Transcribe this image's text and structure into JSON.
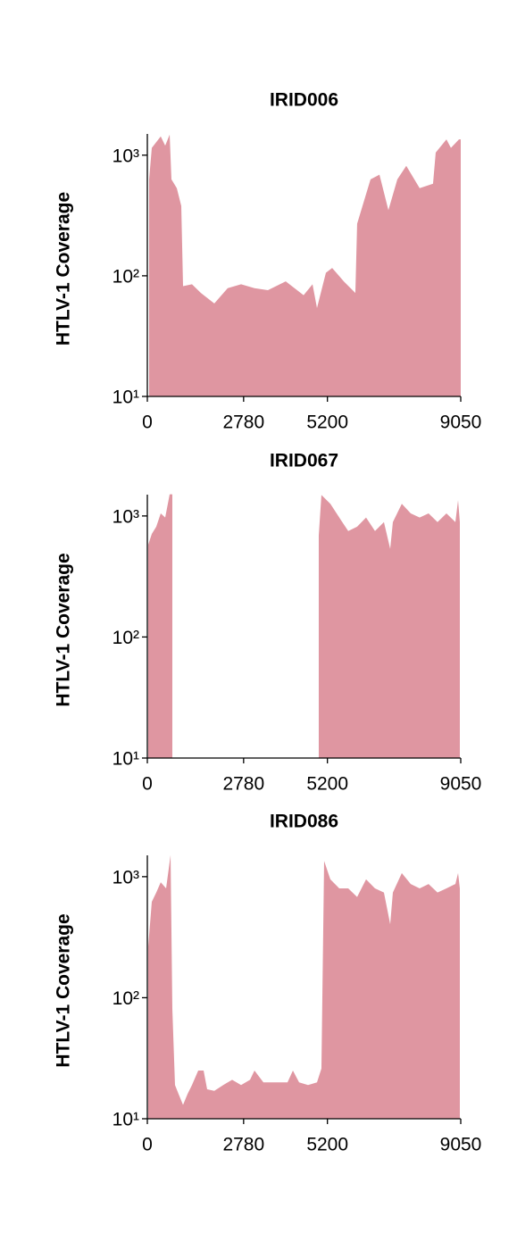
{
  "chart_data": [
    {
      "type": "area",
      "title": "IRID006",
      "ylabel": "HTLV-1 Coverage",
      "color": "#df96a1",
      "log_y": true,
      "xlim": [
        0,
        9050
      ],
      "xticks": [
        0,
        2780,
        5200,
        9050
      ],
      "ylim": [
        10,
        1500
      ],
      "yticks": [
        {
          "value": 10,
          "label": "10¹"
        },
        {
          "value": 100,
          "label": "10²"
        },
        {
          "value": 1000,
          "label": "10³"
        }
      ],
      "x": [
        52,
        129,
        387,
        516,
        645,
        696,
        851,
        980,
        1031,
        1289,
        1547,
        1934,
        2320,
        2707,
        3094,
        3481,
        3996,
        4512,
        4770,
        4899,
        5156,
        5337,
        5672,
        6007,
        6058,
        6445,
        6703,
        6961,
        7219,
        7477,
        7863,
        8250,
        8327,
        8637,
        8766,
        8998,
        9050
      ],
      "series": [
        {
          "values": [
            631,
            1150,
            1430,
            1200,
            1480,
            630,
            533,
            380,
            82,
            85,
            72,
            59,
            79,
            85,
            79,
            76,
            90,
            69,
            85,
            54,
            106,
            116,
            90,
            72,
            270,
            630,
            690,
            350,
            630,
            815,
            533,
            580,
            1050,
            1350,
            1150,
            1350,
            1350
          ]
        }
      ]
    },
    {
      "type": "area",
      "title": "IRID067",
      "ylabel": "HTLV-1 Coverage",
      "color": "#df96a1",
      "log_y": true,
      "xlim": [
        0,
        9050
      ],
      "xticks": [
        0,
        2780,
        5200,
        9050
      ],
      "ylim": [
        10,
        1500
      ],
      "yticks": [
        {
          "value": 10,
          "label": "10¹"
        },
        {
          "value": 100,
          "label": "10²"
        },
        {
          "value": 1000,
          "label": "10³"
        }
      ],
      "x": [
        26,
        129,
        258,
        387,
        516,
        645,
        722,
        800,
        4900,
        4950,
        5027,
        5285,
        5543,
        5801,
        6058,
        6316,
        6574,
        6832,
        7013,
        7090,
        7348,
        7606,
        7863,
        8121,
        8379,
        8637,
        8895,
        8973,
        9024
      ],
      "series": [
        {
          "values": [
            580,
            710,
            815,
            1050,
            970,
            1510,
            1510,
            null,
            null,
            690,
            1490,
            1260,
            970,
            750,
            815,
            970,
            750,
            890,
            535,
            890,
            1260,
            1050,
            970,
            1050,
            890,
            1050,
            890,
            1350,
            890
          ]
        }
      ]
    },
    {
      "type": "area",
      "title": "IRID086",
      "ylabel": "HTLV-1 Coverage",
      "color": "#df96a1",
      "log_y": true,
      "xlim": [
        0,
        9050
      ],
      "xticks": [
        0,
        2780,
        5200,
        9050
      ],
      "ylim": [
        10,
        1500
      ],
      "yticks": [
        {
          "value": 10,
          "label": "10¹"
        },
        {
          "value": 100,
          "label": "10²"
        },
        {
          "value": 1000,
          "label": "10³"
        }
      ],
      "x": [
        26,
        129,
        258,
        387,
        542,
        671,
        722,
        799,
        903,
        1031,
        1160,
        1289,
        1470,
        1625,
        1727,
        1934,
        2192,
        2449,
        2707,
        2965,
        3094,
        3352,
        3738,
        4048,
        4203,
        4383,
        4641,
        4899,
        5027,
        5105,
        5285,
        5543,
        5801,
        6058,
        6316,
        6574,
        6832,
        7013,
        7090,
        7348,
        7606,
        7863,
        8121,
        8379,
        8637,
        8895,
        8973,
        9024
      ],
      "series": [
        {
          "values": [
            265,
            620,
            740,
            900,
            800,
            1510,
            81,
            19,
            16,
            13,
            16,
            19,
            25,
            25,
            17.5,
            17,
            19,
            21,
            19,
            21,
            25,
            20,
            20,
            20,
            25,
            20,
            19,
            20,
            26,
            1350,
            950,
            800,
            800,
            680,
            950,
            800,
            740,
            405,
            740,
            1070,
            870,
            800,
            870,
            740,
            800,
            870,
            1070,
            800
          ]
        }
      ]
    }
  ]
}
